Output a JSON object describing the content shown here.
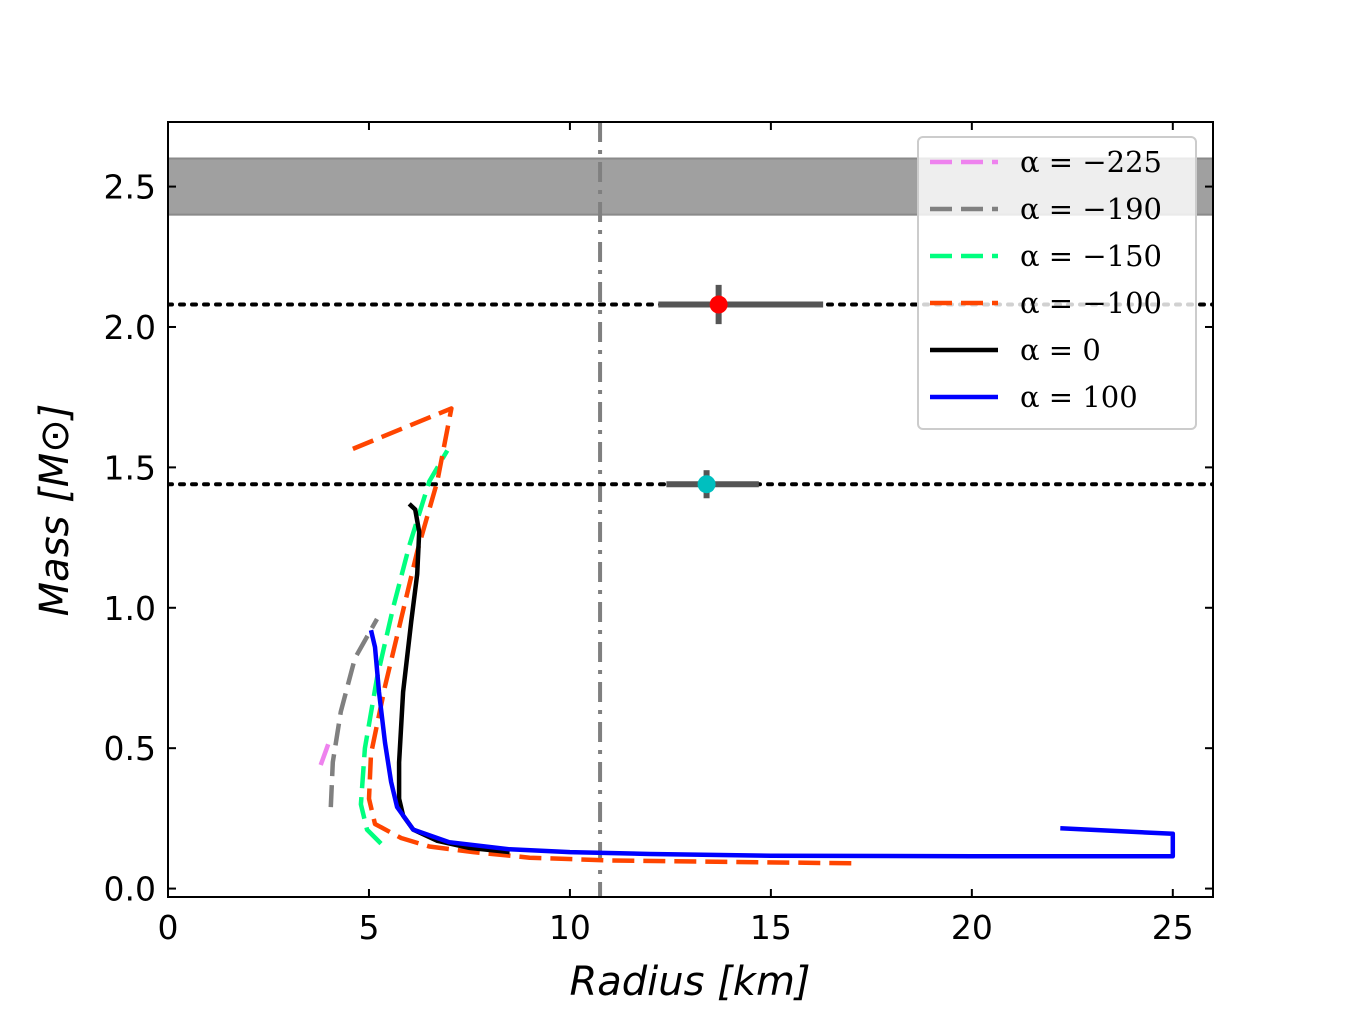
{
  "chart_data": {
    "type": "line",
    "title": "",
    "xlabel": "Radius [km]",
    "ylabel": "Mass [M⊙]",
    "xlim": [
      0,
      26
    ],
    "ylim": [
      -0.03,
      2.73
    ],
    "xticks": [
      0,
      5,
      10,
      15,
      20,
      25
    ],
    "yticks": [
      0.0,
      0.5,
      1.0,
      1.5,
      2.0,
      2.5
    ],
    "xtick_labels": [
      "0",
      "5",
      "10",
      "15",
      "20",
      "25"
    ],
    "ytick_labels": [
      "0.0",
      "0.5",
      "1.0",
      "1.5",
      "2.0",
      "2.5"
    ],
    "grid": false,
    "legend_position": "top-right",
    "series": [
      {
        "name": "α = −225",
        "color": "#ee82ee",
        "style": "dashed",
        "points": [
          [
            3.8,
            0.44
          ],
          [
            3.95,
            0.5
          ],
          [
            4.05,
            0.54
          ]
        ]
      },
      {
        "name": "α = −190",
        "color": "#808080",
        "style": "dashed",
        "points": [
          [
            4.05,
            0.29
          ],
          [
            4.1,
            0.45
          ],
          [
            4.3,
            0.63
          ],
          [
            4.65,
            0.82
          ],
          [
            5.2,
            0.96
          ]
        ]
      },
      {
        "name": "α = −150",
        "color": "#00ff7f",
        "style": "dashed",
        "points": [
          [
            5.3,
            0.16
          ],
          [
            4.95,
            0.21
          ],
          [
            4.8,
            0.3
          ],
          [
            4.9,
            0.5
          ],
          [
            5.2,
            0.75
          ],
          [
            5.6,
            1.0
          ],
          [
            6.0,
            1.22
          ],
          [
            6.5,
            1.45
          ],
          [
            6.95,
            1.56
          ]
        ]
      },
      {
        "name": "α = −100",
        "color": "#ff4500",
        "style": "dashed",
        "points": [
          [
            17.0,
            0.09
          ],
          [
            14.0,
            0.095
          ],
          [
            11.0,
            0.1
          ],
          [
            9.0,
            0.11
          ],
          [
            7.6,
            0.13
          ],
          [
            6.5,
            0.15
          ],
          [
            5.8,
            0.18
          ],
          [
            5.15,
            0.23
          ],
          [
            5.0,
            0.32
          ],
          [
            5.05,
            0.48
          ],
          [
            5.4,
            0.72
          ],
          [
            5.8,
            0.96
          ],
          [
            6.2,
            1.2
          ],
          [
            6.7,
            1.45
          ],
          [
            7.05,
            1.71
          ],
          [
            4.5,
            1.56
          ]
        ]
      },
      {
        "name": "α = 0",
        "color": "#000000",
        "style": "solid",
        "points": [
          [
            8.5,
            0.13
          ],
          [
            7.5,
            0.145
          ],
          [
            6.7,
            0.17
          ],
          [
            6.1,
            0.21
          ],
          [
            5.85,
            0.26
          ],
          [
            5.75,
            0.32
          ],
          [
            5.75,
            0.45
          ],
          [
            5.85,
            0.7
          ],
          [
            6.05,
            0.95
          ],
          [
            6.2,
            1.12
          ],
          [
            6.25,
            1.27
          ],
          [
            6.15,
            1.35
          ],
          [
            6.0,
            1.37
          ]
        ]
      },
      {
        "name": "α = 100",
        "color": "#0000ff",
        "style": "solid",
        "points": [
          [
            5.05,
            0.92
          ],
          [
            5.15,
            0.86
          ],
          [
            5.25,
            0.7
          ],
          [
            5.4,
            0.52
          ],
          [
            5.55,
            0.38
          ],
          [
            5.7,
            0.29
          ],
          [
            6.1,
            0.21
          ],
          [
            7.0,
            0.165
          ],
          [
            8.5,
            0.14
          ],
          [
            10.0,
            0.13
          ],
          [
            12.0,
            0.123
          ],
          [
            15.0,
            0.117
          ],
          [
            20.0,
            0.115
          ],
          [
            25.0,
            0.115
          ],
          [
            25.0,
            0.195
          ],
          [
            22.2,
            0.215
          ]
        ]
      }
    ],
    "markers": [
      {
        "name": "red-measurement",
        "x": 13.7,
        "y": 2.08,
        "x_err": [
          12.2,
          16.3
        ],
        "y_err": [
          2.01,
          2.15
        ],
        "color": "#ff0000"
      },
      {
        "name": "cyan-measurement",
        "x": 13.4,
        "y": 1.44,
        "x_err": [
          12.4,
          14.7
        ],
        "y_err": [
          1.39,
          1.49
        ],
        "color": "#00bfbf"
      }
    ],
    "horizontal_band": {
      "y_min": 2.4,
      "y_max": 2.6,
      "color": "#a0a0a0"
    },
    "horizontal_lines": [
      {
        "y": 2.08,
        "style": "dotted",
        "color": "#000000"
      },
      {
        "y": 1.44,
        "style": "dotted",
        "color": "#000000"
      }
    ],
    "vertical_lines": [
      {
        "x": 10.75,
        "style": "dashdot",
        "color": "#808080"
      }
    ]
  }
}
